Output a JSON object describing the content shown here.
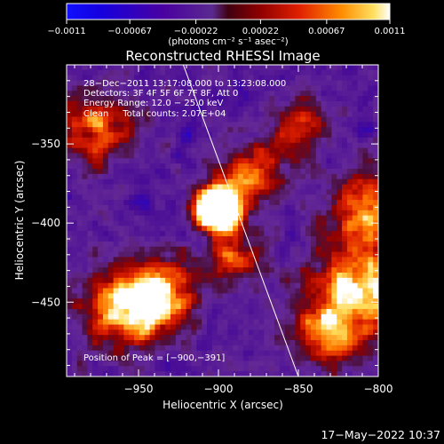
{
  "chart_data": {
    "type": "heatmap",
    "title": "Reconstructed RHESSI Image",
    "xlabel": "Heliocentric X (arcsec)",
    "ylabel": "Heliocentric Y (arcsec)",
    "xlim": [
      -995,
      -800
    ],
    "ylim": [
      -497,
      -300
    ],
    "x_ticks": [
      {
        "value": -950,
        "label": "−950"
      },
      {
        "value": -900,
        "label": "−900"
      },
      {
        "value": -850,
        "label": "−850"
      },
      {
        "value": -800,
        "label": "−800"
      }
    ],
    "y_ticks": [
      {
        "value": -350,
        "label": "−350"
      },
      {
        "value": -400,
        "label": "−400"
      },
      {
        "value": -450,
        "label": "−450"
      }
    ],
    "colorbar": {
      "range": [
        -0.0011,
        0.0011
      ],
      "ticks": [
        {
          "value": -0.0011,
          "label": "−0.0011"
        },
        {
          "value": -0.00067,
          "label": "−0.00067"
        },
        {
          "value": -0.00022,
          "label": "−0.00022"
        },
        {
          "value": 0.00022,
          "label": "0.00022"
        },
        {
          "value": 0.00067,
          "label": "0.00067"
        },
        {
          "value": 0.0011,
          "label": "0.0011"
        }
      ],
      "unit_label": "(photons cm⁻² s⁻¹ asec⁻²)"
    },
    "info_lines": [
      "28−Dec−2011 13:17:08.000 to 13:23:08.000",
      "Detectors: 3F 4F 5F 6F 7F 8F, Att 0",
      "Energy Range: 12.0 − 25.0 keV",
      "Clean     Total counts: 2.07E+04"
    ],
    "peak_label": "Position of Peak = [−900,−391]",
    "peak": [
      -900,
      -391
    ],
    "limb_line": [
      [
        -922,
        -300
      ],
      [
        -850,
        -497
      ]
    ],
    "colors": {
      "background": "#000000",
      "colormap": [
        "#0000ff",
        "#4b007a",
        "#7a2fa0",
        "#8a0000",
        "#d01000",
        "#ff6000",
        "#ffc020",
        "#ffffff"
      ]
    }
  },
  "footer": {
    "timestamp": "17−May−2022 10:37"
  }
}
